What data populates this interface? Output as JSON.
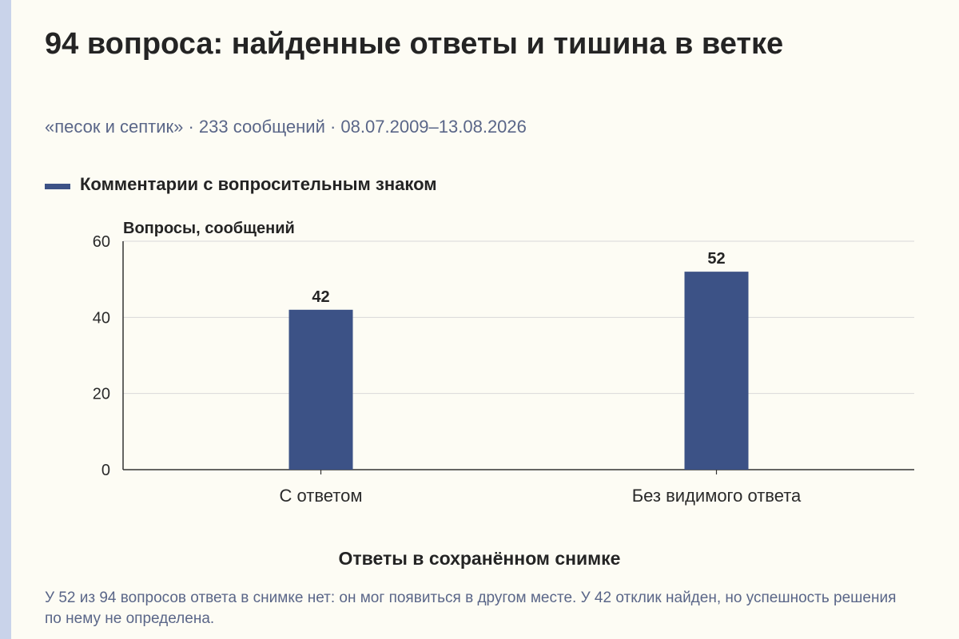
{
  "header": {
    "title": "94 вопроса: найденные ответы и тишина в ветке",
    "subtitle": "«песок и септик» · 233 сообщений · 08.07.2009–13.08.2026"
  },
  "footnote": "У 52 из 94 вопросов ответа в снимке нет: он мог появиться в другом месте. У 42 отклик найден, но успешность решения по нему не определена.",
  "colors": {
    "bar": "#3c5286",
    "grid": "#d9d9d9",
    "background": "#fdfcf4"
  },
  "chart_data": {
    "type": "bar",
    "categories": [
      "С ответом",
      "Без видимого ответа"
    ],
    "series": [
      {
        "name": "Комментарии с вопросительным знаком",
        "values": [
          42,
          52
        ]
      }
    ],
    "data_labels": [
      "42",
      "52"
    ],
    "xlabel": "Ответы в сохранённом снимке",
    "ylabel": "Вопросы, сообщений",
    "ylim": [
      0,
      60
    ],
    "yticks": [
      0,
      20,
      40,
      60
    ],
    "yticks_labels": [
      "0",
      "20",
      "40",
      "60"
    ],
    "grid": true,
    "legend": "top-left"
  }
}
